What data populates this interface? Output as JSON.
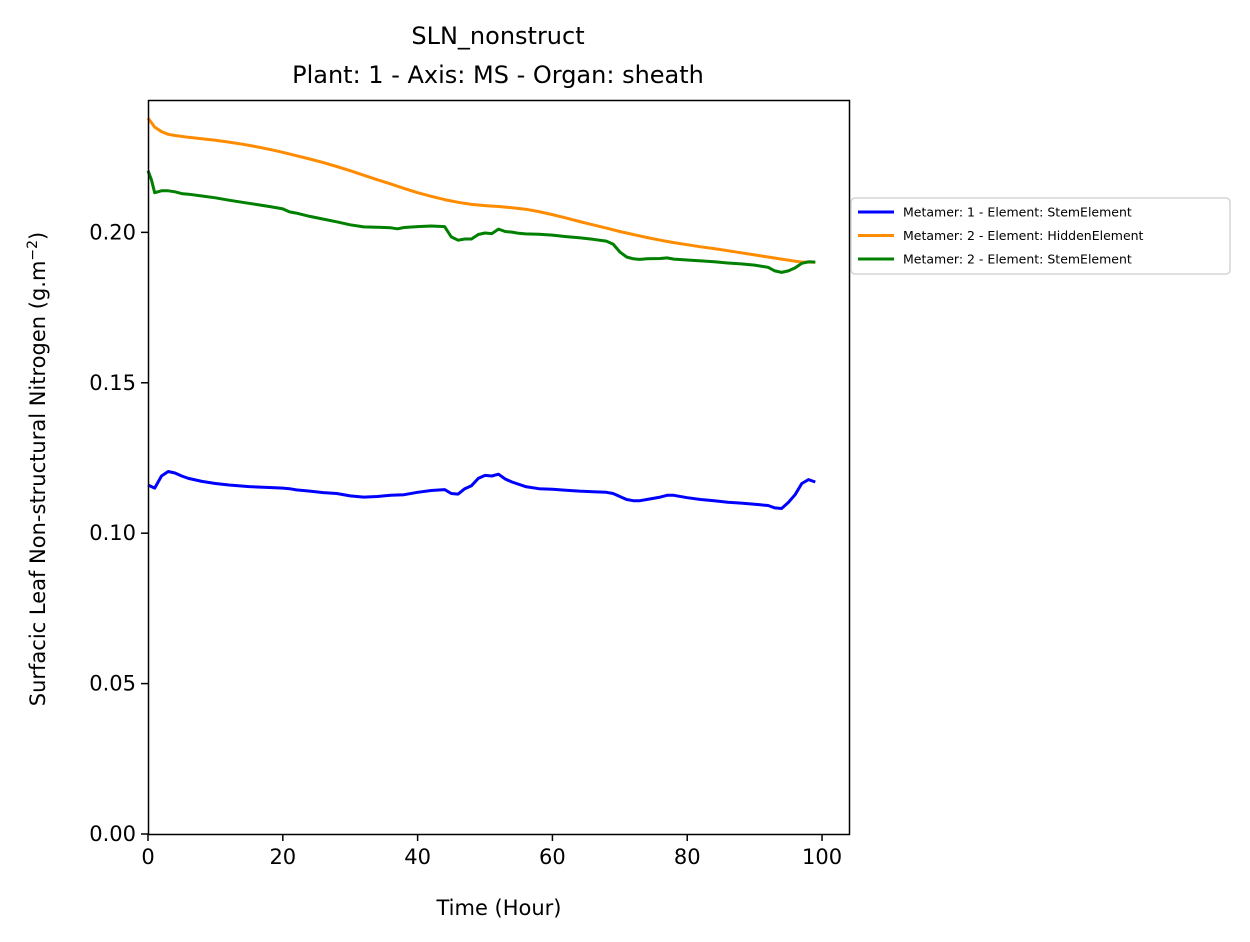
{
  "chart_data": {
    "type": "line",
    "title": "SLN_nonstruct",
    "subtitle": "Plant: 1 - Axis: MS - Organ: sheath",
    "xlabel": "Time (Hour)",
    "ylabel": "Surfacic Leaf Non-structural Nitrogen (g.m",
    "ylabel_sup": "−2",
    "ylabel_close": ")",
    "xlim": [
      0,
      104
    ],
    "ylim": [
      0,
      0.244
    ],
    "xticks": [
      0,
      20,
      40,
      60,
      80,
      100
    ],
    "xtick_labels": [
      "0",
      "20",
      "40",
      "60",
      "80",
      "100"
    ],
    "yticks": [
      0,
      0.05,
      0.1,
      0.15,
      0.2
    ],
    "ytick_labels": [
      "0.00",
      "0.05",
      "0.10",
      "0.15",
      "0.20"
    ],
    "grid": false,
    "legend_position": "outside right",
    "series": [
      {
        "name": "Metamer: 1 - Element: StemElement",
        "color": "#0000ff",
        "x": [
          0,
          1,
          2,
          3,
          4,
          5,
          6,
          8,
          10,
          12,
          15,
          18,
          20,
          21,
          22,
          24,
          26,
          28,
          30,
          32,
          34,
          36,
          38,
          40,
          42,
          44,
          45,
          46,
          47,
          48,
          49,
          50,
          51,
          52,
          53,
          54,
          56,
          58,
          60,
          62,
          64,
          66,
          68,
          69,
          70,
          71,
          72,
          73,
          74,
          76,
          77,
          78,
          80,
          82,
          84,
          86,
          88,
          90,
          92,
          93,
          94,
          95,
          96,
          97,
          98,
          99
        ],
        "y": [
          0.116,
          0.115,
          0.119,
          0.1205,
          0.12,
          0.119,
          0.1182,
          0.1172,
          0.1165,
          0.116,
          0.1155,
          0.1152,
          0.115,
          0.1148,
          0.1144,
          0.114,
          0.1135,
          0.1132,
          0.1124,
          0.112,
          0.1122,
          0.1126,
          0.1128,
          0.1136,
          0.1142,
          0.1145,
          0.1132,
          0.113,
          0.1148,
          0.1158,
          0.1182,
          0.1192,
          0.119,
          0.1196,
          0.118,
          0.117,
          0.1155,
          0.1148,
          0.1146,
          0.1143,
          0.114,
          0.1138,
          0.1136,
          0.1132,
          0.1122,
          0.1112,
          0.1108,
          0.1108,
          0.1112,
          0.112,
          0.1126,
          0.1126,
          0.1118,
          0.1112,
          0.1108,
          0.1103,
          0.11,
          0.1096,
          0.1092,
          0.1084,
          0.1082,
          0.1102,
          0.1128,
          0.1165,
          0.1178,
          0.117
        ]
      },
      {
        "name": "Metamer: 2 - Element: HiddenElement",
        "color": "#ff8c00",
        "x": [
          0,
          1,
          2,
          3,
          4,
          6,
          8,
          10,
          12,
          14,
          16,
          18,
          20,
          22,
          24,
          26,
          28,
          30,
          32,
          34,
          36,
          38,
          40,
          42,
          44,
          46,
          48,
          50,
          52,
          54,
          56,
          58,
          60,
          62,
          64,
          66,
          68,
          70,
          72,
          74,
          76,
          78,
          80,
          82,
          84,
          86,
          88,
          90,
          92,
          94,
          96,
          97,
          98,
          99
        ],
        "y": [
          0.238,
          0.235,
          0.2335,
          0.2326,
          0.2322,
          0.2316,
          0.2311,
          0.2306,
          0.23,
          0.2293,
          0.2285,
          0.2276,
          0.2266,
          0.2255,
          0.2244,
          0.2232,
          0.2219,
          0.2205,
          0.219,
          0.2175,
          0.2161,
          0.2146,
          0.2132,
          0.212,
          0.2109,
          0.21,
          0.2093,
          0.2089,
          0.2086,
          0.2082,
          0.2077,
          0.2069,
          0.2059,
          0.2048,
          0.2036,
          0.2025,
          0.2014,
          0.2003,
          0.1993,
          0.1983,
          0.1974,
          0.1966,
          0.1959,
          0.1952,
          0.1946,
          0.1939,
          0.1932,
          0.1925,
          0.1918,
          0.1911,
          0.1904,
          0.1901,
          0.1901,
          0.1901
        ]
      },
      {
        "name": "Metamer: 2 - Element: StemElement",
        "color": "#008000",
        "x": [
          0,
          0.5,
          1,
          2,
          3,
          4,
          5,
          6,
          8,
          10,
          12,
          14,
          16,
          18,
          20,
          21,
          22,
          24,
          26,
          28,
          30,
          32,
          34,
          36,
          37,
          38,
          40,
          42,
          44,
          45,
          46,
          47,
          48,
          49,
          50,
          51,
          52,
          53,
          54,
          55,
          56,
          58,
          60,
          62,
          64,
          66,
          68,
          69,
          70,
          71,
          72,
          73,
          74,
          76,
          77,
          78,
          80,
          82,
          84,
          86,
          88,
          90,
          92,
          93,
          94,
          95,
          96,
          97,
          98,
          99
        ],
        "y": [
          0.2205,
          0.2175,
          0.2132,
          0.2138,
          0.2138,
          0.2135,
          0.2129,
          0.2127,
          0.2121,
          0.2115,
          0.2107,
          0.21,
          0.2093,
          0.2086,
          0.2078,
          0.2068,
          0.2064,
          0.2053,
          0.2044,
          0.2035,
          0.2025,
          0.2018,
          0.2017,
          0.2015,
          0.2012,
          0.2016,
          0.2019,
          0.2021,
          0.2019,
          0.1985,
          0.1974,
          0.1978,
          0.1978,
          0.1993,
          0.1998,
          0.1996,
          0.2011,
          0.2003,
          0.2001,
          0.1997,
          0.1995,
          0.1994,
          0.1991,
          0.1986,
          0.1982,
          0.1977,
          0.1971,
          0.1961,
          0.1935,
          0.1918,
          0.1912,
          0.191,
          0.1912,
          0.1913,
          0.1915,
          0.1911,
          0.1908,
          0.1905,
          0.1902,
          0.1898,
          0.1895,
          0.1891,
          0.1884,
          0.1872,
          0.1867,
          0.1872,
          0.1882,
          0.1897,
          0.1902,
          0.1901
        ]
      }
    ]
  }
}
